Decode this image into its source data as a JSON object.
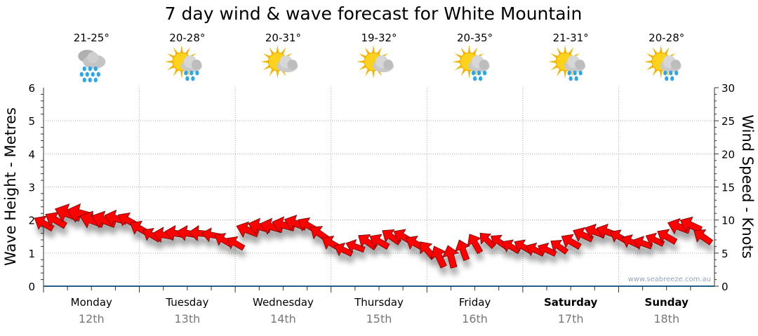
{
  "chart_data": {
    "type": "scatter",
    "title": "7 day wind & wave forecast for White Mountain",
    "ylabel": "Wave Height - Metres",
    "y2label": "Wind Speed - Knots",
    "ylim": [
      0,
      6
    ],
    "y2lim": [
      0,
      30
    ],
    "yticks": [
      "0",
      "1",
      "2",
      "3",
      "4",
      "5",
      "6"
    ],
    "y2ticks": [
      "0",
      "5",
      "10",
      "15",
      "20",
      "25",
      "30"
    ],
    "grid": true,
    "watermark": "www.seabreeze.com.au",
    "days": [
      {
        "day": "Monday",
        "date": "12th",
        "temp": "21-25°",
        "icon": "rain-icon",
        "weekend": false
      },
      {
        "day": "Tuesday",
        "date": "13th",
        "temp": "20-28°",
        "icon": "sun-cloud-rain-icon",
        "weekend": false
      },
      {
        "day": "Wednesday",
        "date": "14th",
        "temp": "20-31°",
        "icon": "sun-cloud-icon",
        "weekend": false
      },
      {
        "day": "Thursday",
        "date": "15th",
        "temp": "19-32°",
        "icon": "sun-cloud-icon",
        "weekend": false
      },
      {
        "day": "Friday",
        "date": "16th",
        "temp": "20-35°",
        "icon": "sun-cloud-rain-icon",
        "weekend": false
      },
      {
        "day": "Saturday",
        "date": "17th",
        "temp": "21-31°",
        "icon": "sun-cloud-rain-icon",
        "weekend": true
      },
      {
        "day": "Sunday",
        "date": "18th",
        "temp": "20-28°",
        "icon": "sun-cloud-rain-icon",
        "weekend": true
      }
    ],
    "interval_hours": 3,
    "wave_height_m": [
      1.9,
      2.0,
      2.2,
      2.2,
      2.0,
      2.0,
      2.05,
      2.0,
      1.75,
      1.55,
      1.55,
      1.6,
      1.6,
      1.6,
      1.55,
      1.4,
      1.3,
      1.7,
      1.8,
      1.8,
      1.85,
      1.9,
      1.85,
      1.6,
      1.3,
      1.1,
      1.2,
      1.35,
      1.35,
      1.5,
      1.5,
      1.3,
      1.1,
      0.9,
      0.9,
      1.1,
      1.3,
      1.4,
      1.35,
      1.2,
      1.2,
      1.1,
      1.1,
      1.2,
      1.35,
      1.55,
      1.65,
      1.65,
      1.5,
      1.35,
      1.3,
      1.4,
      1.5,
      1.8,
      1.85,
      1.5
    ],
    "wind_heading_deg": [
      300,
      300,
      290,
      285,
      290,
      290,
      285,
      300,
      300,
      300,
      280,
      280,
      280,
      275,
      280,
      300,
      300,
      290,
      285,
      285,
      285,
      290,
      300,
      305,
      300,
      295,
      290,
      305,
      300,
      305,
      300,
      300,
      320,
      335,
      345,
      340,
      330,
      315,
      305,
      300,
      300,
      295,
      295,
      305,
      300,
      295,
      290,
      290,
      300,
      295,
      290,
      295,
      300,
      290,
      295,
      305
    ],
    "wind_speed_kn": [
      12,
      13,
      15,
      15,
      14,
      14,
      13,
      12,
      12,
      11,
      12,
      12,
      12,
      12,
      11,
      11,
      11,
      13,
      13,
      13,
      13,
      13,
      12,
      12,
      12,
      11,
      11,
      12,
      12,
      12,
      12,
      12,
      12,
      13,
      13,
      12,
      12,
      11,
      11,
      11,
      11,
      11,
      11,
      11,
      12,
      12,
      12,
      12,
      11,
      11,
      11,
      11,
      12,
      13,
      13,
      12
    ]
  }
}
